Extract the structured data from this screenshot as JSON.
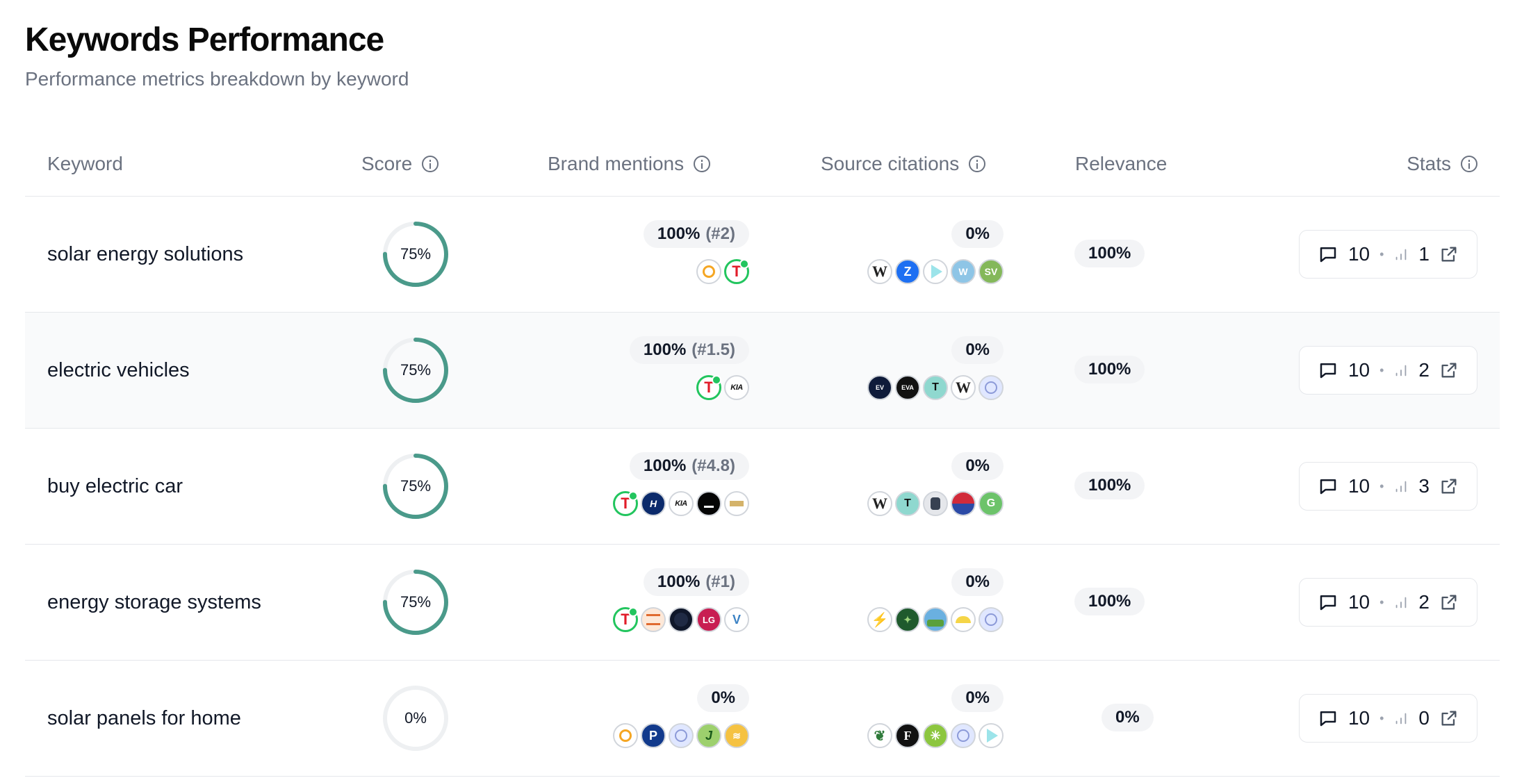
{
  "header": {
    "title": "Keywords Performance",
    "subtitle": "Performance metrics breakdown by keyword"
  },
  "columns": {
    "keyword": "Keyword",
    "score": "Score",
    "brand_mentions": "Brand mentions",
    "source_citations": "Source citations",
    "relevance": "Relevance",
    "stats": "Stats"
  },
  "colors": {
    "ring": "#4a9a8a",
    "ring_track": "#eef0f2",
    "highlight": "#22c55e",
    "pill_bg": "#f3f4f6"
  },
  "rows": [
    {
      "keyword": "solar energy solutions",
      "score": "75%",
      "score_value": 0.75,
      "brand_pct": "100%",
      "brand_rank": "(#2)",
      "brand_icons": [
        "orange-ring-logo",
        "tesla-logo"
      ],
      "citations": "0%",
      "citation_icons": [
        "wikipedia-logo",
        "zillow-logo",
        "play-logo",
        "w-badge-logo",
        "sv-logo"
      ],
      "relevance": "100%",
      "stats_responses": "10",
      "stats_rank": "1"
    },
    {
      "keyword": "electric vehicles",
      "score": "75%",
      "score_value": 0.75,
      "brand_pct": "100%",
      "brand_rank": "(#1.5)",
      "brand_icons": [
        "tesla-logo",
        "kia-logo"
      ],
      "citations": "0%",
      "citation_icons": [
        "ev-logo",
        "eva-logo",
        "t-logo",
        "wikipedia-logo",
        "globe-logo"
      ],
      "relevance": "100%",
      "stats_responses": "10",
      "stats_rank": "2"
    },
    {
      "keyword": "buy electric car",
      "score": "75%",
      "score_value": 0.75,
      "brand_pct": "100%",
      "brand_rank": "(#4.8)",
      "brand_icons": [
        "tesla-logo",
        "hyundai-logo",
        "kia-logo",
        "lucid-logo",
        "chevrolet-logo"
      ],
      "citations": "0%",
      "citation_icons": [
        "wikipedia-logo",
        "t-logo",
        "robot-logo",
        "flag-logo",
        "g-logo"
      ],
      "relevance": "100%",
      "stats_responses": "10",
      "stats_rank": "3"
    },
    {
      "keyword": "energy storage systems",
      "score": "75%",
      "score_value": 0.75,
      "brand_pct": "100%",
      "brand_rank": "(#1)",
      "brand_icons": [
        "tesla-logo",
        "striped-logo",
        "dark-circle-logo",
        "lg-logo",
        "v-logo"
      ],
      "citations": "0%",
      "citation_icons": [
        "bolt-logo",
        "green-seal-logo",
        "landscape-logo",
        "sun-logo",
        "globe-logo"
      ],
      "relevance": "100%",
      "stats_responses": "10",
      "stats_rank": "2"
    },
    {
      "keyword": "solar panels for home",
      "score": "0%",
      "score_value": 0,
      "brand_pct": "0%",
      "brand_rank": "",
      "brand_icons": [
        "orange-ring-logo",
        "p-logo",
        "globe-logo",
        "j-logo",
        "sunrise-logo"
      ],
      "citations": "0%",
      "citation_icons": [
        "leaf-logo",
        "f-logo",
        "flower-logo",
        "globe-logo",
        "play-logo"
      ],
      "relevance": "0%",
      "stats_responses": "10",
      "stats_rank": "0"
    }
  ]
}
